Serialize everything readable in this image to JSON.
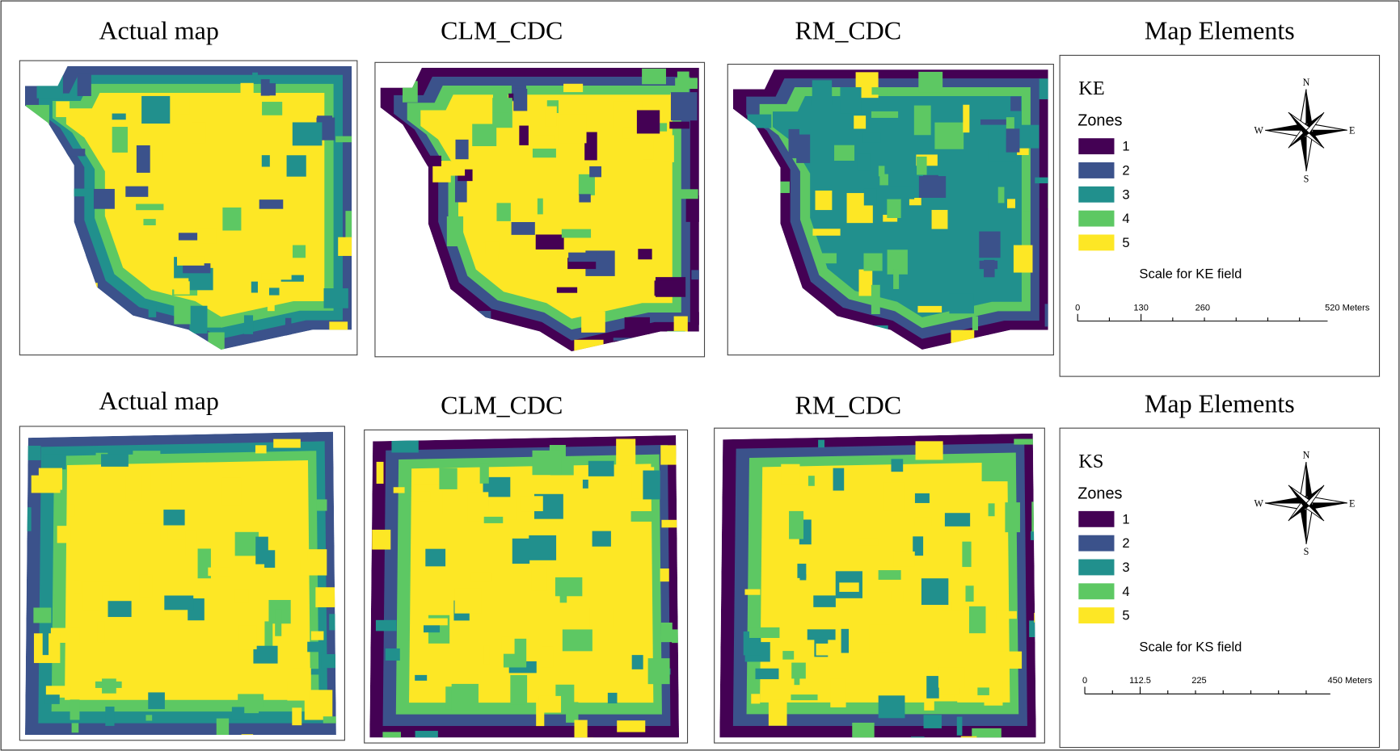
{
  "zone_colors": [
    "#440154",
    "#3b528b",
    "#21908d",
    "#5dc863",
    "#fde725"
  ],
  "rows": [
    {
      "panels": [
        {
          "title": "Actual map"
        },
        {
          "title": "CLM_CDC"
        },
        {
          "title": "RM_CDC"
        }
      ],
      "legend": {
        "title": "Map Elements",
        "field": "KE",
        "zones_title": "Zones",
        "zones": [
          "1",
          "2",
          "3",
          "4",
          "5"
        ],
        "compass": [
          "N",
          "E",
          "S",
          "W"
        ],
        "scale_title": "Scale for  KE field",
        "scale_labels": [
          "0",
          "130",
          "260",
          "520 Meters"
        ]
      }
    },
    {
      "panels": [
        {
          "title": "Actual map"
        },
        {
          "title": "CLM_CDC"
        },
        {
          "title": "RM_CDC"
        }
      ],
      "legend": {
        "title": "Map Elements",
        "field": "KS",
        "zones_title": "Zones",
        "zones": [
          "1",
          "2",
          "3",
          "4",
          "5"
        ],
        "compass": [
          "N",
          "E",
          "S",
          "W"
        ],
        "scale_title": "Scale for KS field",
        "scale_labels": [
          "0",
          "112.5",
          "225",
          "450 Meters"
        ]
      }
    }
  ]
}
